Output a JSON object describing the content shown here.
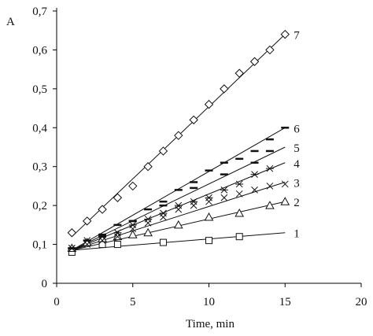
{
  "chart_data": {
    "type": "scatter",
    "title": "",
    "xlabel": "Time, min",
    "ylabel": "A",
    "xlim": [
      0,
      20
    ],
    "ylim": [
      0,
      0.7
    ],
    "x_ticks": [
      0,
      5,
      10,
      15,
      20
    ],
    "x_tick_labels": [
      "0",
      "5",
      "10",
      "15",
      "20"
    ],
    "y_ticks": [
      0,
      0.1,
      0.2,
      0.3,
      0.4,
      0.5,
      0.6,
      0.7
    ],
    "y_tick_labels": [
      "0",
      "0,1",
      "0,2",
      "0,3",
      "0,4",
      "0,5",
      "0,6",
      "0,7"
    ],
    "grid": false,
    "legend": "direct labels at line ends",
    "series": [
      {
        "name": "1",
        "marker": "square",
        "x": [
          1,
          3,
          4,
          7,
          10,
          12
        ],
        "y": [
          0.08,
          0.1,
          0.1,
          0.105,
          0.11,
          0.12
        ],
        "fit": {
          "x": [
            1,
            15
          ],
          "y": [
            0.085,
            0.13
          ]
        }
      },
      {
        "name": "2",
        "marker": "triangle",
        "x": [
          1,
          2,
          3,
          4,
          5,
          6,
          8,
          10,
          12,
          14,
          15
        ],
        "y": [
          0.09,
          0.105,
          0.115,
          0.12,
          0.125,
          0.13,
          0.15,
          0.17,
          0.18,
          0.2,
          0.21
        ],
        "fit": {
          "x": [
            1,
            15
          ],
          "y": [
            0.085,
            0.21
          ]
        }
      },
      {
        "name": "3",
        "marker": "x",
        "x": [
          1,
          2,
          3,
          4,
          5,
          6,
          7,
          8,
          9,
          10,
          11,
          12,
          13,
          14,
          15
        ],
        "y": [
          0.09,
          0.1,
          0.11,
          0.12,
          0.14,
          0.155,
          0.17,
          0.19,
          0.2,
          0.21,
          0.22,
          0.23,
          0.24,
          0.25,
          0.255
        ],
        "fit": {
          "x": [
            1,
            15
          ],
          "y": [
            0.085,
            0.26
          ]
        }
      },
      {
        "name": "4",
        "marker": "asterisk",
        "x": [
          1,
          2,
          3,
          4,
          5,
          6,
          7,
          8,
          9,
          10,
          11,
          12,
          13,
          14
        ],
        "y": [
          0.09,
          0.11,
          0.12,
          0.13,
          0.15,
          0.165,
          0.18,
          0.2,
          0.21,
          0.22,
          0.24,
          0.255,
          0.28,
          0.295
        ],
        "fit": {
          "x": [
            1,
            15
          ],
          "y": [
            0.085,
            0.31
          ]
        }
      },
      {
        "name": "5",
        "marker": "dash",
        "x": [
          1,
          3,
          5,
          7,
          9,
          11,
          13,
          14
        ],
        "y": [
          0.09,
          0.125,
          0.16,
          0.2,
          0.245,
          0.28,
          0.31,
          0.34
        ],
        "fit": {
          "x": [
            1,
            15
          ],
          "y": [
            0.085,
            0.35
          ]
        }
      },
      {
        "name": "6",
        "marker": "dash",
        "x": [
          1,
          2,
          3,
          4,
          5,
          6,
          7,
          8,
          9,
          10,
          11,
          12,
          13,
          14,
          15
        ],
        "y": [
          0.09,
          0.11,
          0.12,
          0.15,
          0.16,
          0.19,
          0.21,
          0.24,
          0.26,
          0.29,
          0.31,
          0.32,
          0.34,
          0.37,
          0.4
        ],
        "fit": {
          "x": [
            1,
            15
          ],
          "y": [
            0.085,
            0.4
          ]
        }
      },
      {
        "name": "7",
        "marker": "diamond",
        "x": [
          1,
          2,
          3,
          4,
          5,
          6,
          7,
          8,
          9,
          10,
          11,
          12,
          13,
          14,
          15
        ],
        "y": [
          0.13,
          0.16,
          0.19,
          0.22,
          0.25,
          0.3,
          0.34,
          0.38,
          0.42,
          0.46,
          0.5,
          0.54,
          0.57,
          0.6,
          0.64
        ],
        "fit": {
          "x": [
            1,
            15
          ],
          "y": [
            0.12,
            0.64
          ]
        }
      }
    ]
  }
}
